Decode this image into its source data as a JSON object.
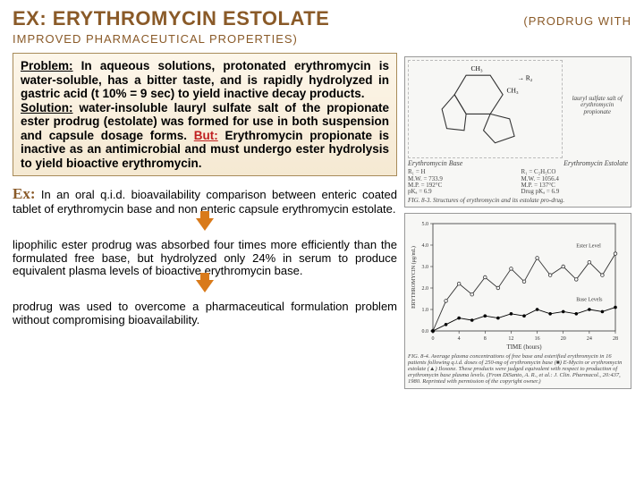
{
  "header": {
    "title_main": "EX:  ERYTHROMYCIN  ESTOLATE",
    "title_paren_right": "(PRODRUG   WITH",
    "subtitle": "IMPROVED PHARMACEUTICAL PROPERTIES)"
  },
  "box1": {
    "problem_label": "Problem:",
    "problem_text": " In aqueous solutions, protonated erythromycin is water-soluble, has a bitter taste, and is rapidly hydrolyzed in gastric acid (t 10% = 9 sec) to yield inactive decay products.",
    "solution_label": "Solution:",
    "solution_text": " water-insoluble lauryl sulfate salt of the propionate ester prodrug (estolate) was formed for use in both suspension and capsule dosage forms. ",
    "but_label": "But:",
    "but_text": " Erythromycin propionate is inactive as an antimicrobial and must undergo ester hydrolysis to yield bioactive erythromycin."
  },
  "ex": {
    "label": "Ex:",
    "text": " In an oral q.i.d. bioavailability comparison between enteric coated tablet of erythromycin base and non enteric capsule erythromycin estolate."
  },
  "para1": "lipophilic ester prodrug was absorbed four times more efficiently than the formulated free base, but hydrolyzed only 24% in serum to produce equivalent plasma levels of bioactive erythromycin base.",
  "para2": "prodrug was used to overcome a pharmaceutical formulation problem without compromising bioavailability.",
  "fig1": {
    "left_label": "Erythromycin Base",
    "right_label": "Erythromycin Estolate",
    "right_sub": "lauryl sulfate salt of erythromycin propionate",
    "legend_lines": [
      "R₁ = H",
      "M.W. = 733.9",
      "M.P. = 192°C",
      "pKₐ = 6.9",
      "R₁ = C₂H₅CO",
      "M.W. = 1056.4",
      "M.P. = 137°C",
      "Drug pKₐ = 6.9"
    ],
    "caption": "FIG. 8-3. Structures of erythromycin and its estolate pro-drug.",
    "annot": "→ R₂",
    "ch3_labels": [
      "CH₃",
      "CH₃",
      "CH₃"
    ]
  },
  "fig2": {
    "ylabel": "ERYTHROMYCIN (μg/mL)",
    "xlabel": "TIME (hours)",
    "ylim": [
      0,
      5.0
    ],
    "yticks": [
      0,
      1.0,
      2.0,
      3.0,
      4.0,
      5.0
    ],
    "xlim": [
      0,
      28
    ],
    "xticks": [
      0,
      4,
      8,
      12,
      16,
      20,
      24,
      28
    ],
    "series": [
      {
        "name": "Ester Level",
        "marker": "circle-open",
        "color": "#333333",
        "x": [
          0,
          2,
          4,
          6,
          8,
          10,
          12,
          14,
          16,
          18,
          20,
          22,
          24,
          26,
          28
        ],
        "y": [
          0,
          1.4,
          2.2,
          1.7,
          2.5,
          2.0,
          2.9,
          2.3,
          3.4,
          2.6,
          3.0,
          2.4,
          3.2,
          2.6,
          3.6
        ]
      },
      {
        "name": "Base Levels",
        "marker": "circle-filled",
        "color": "#000000",
        "x": [
          0,
          2,
          4,
          6,
          8,
          10,
          12,
          14,
          16,
          18,
          20,
          22,
          24,
          26,
          28
        ],
        "y": [
          0,
          0.3,
          0.6,
          0.5,
          0.7,
          0.6,
          0.8,
          0.7,
          1.0,
          0.8,
          0.9,
          0.8,
          1.0,
          0.9,
          1.1
        ]
      }
    ],
    "caption": "FIG. 8-4. Average plasma concentrations of free base and esterified erythromycin in 16 patients following q.i.d. doses of 250-mg of erythromycin base (■) E-Mycin or erythromycin estolate (▲) Ilosone. These products were judged equivalent with respect to production of erythromycin base plasma levels. (From DiSanto, A. R., et al.: J. Clin. Pharmacol., 20:437, 1980. Reprinted with permission of the copyright owner.)"
  },
  "colors": {
    "heading": "#8a5a28",
    "box_border": "#a88b5a",
    "box_bg_top": "#fdf6ea",
    "box_bg_bottom": "#f5e9d2",
    "arrow": "#d97a1a",
    "but": "#c02020"
  }
}
